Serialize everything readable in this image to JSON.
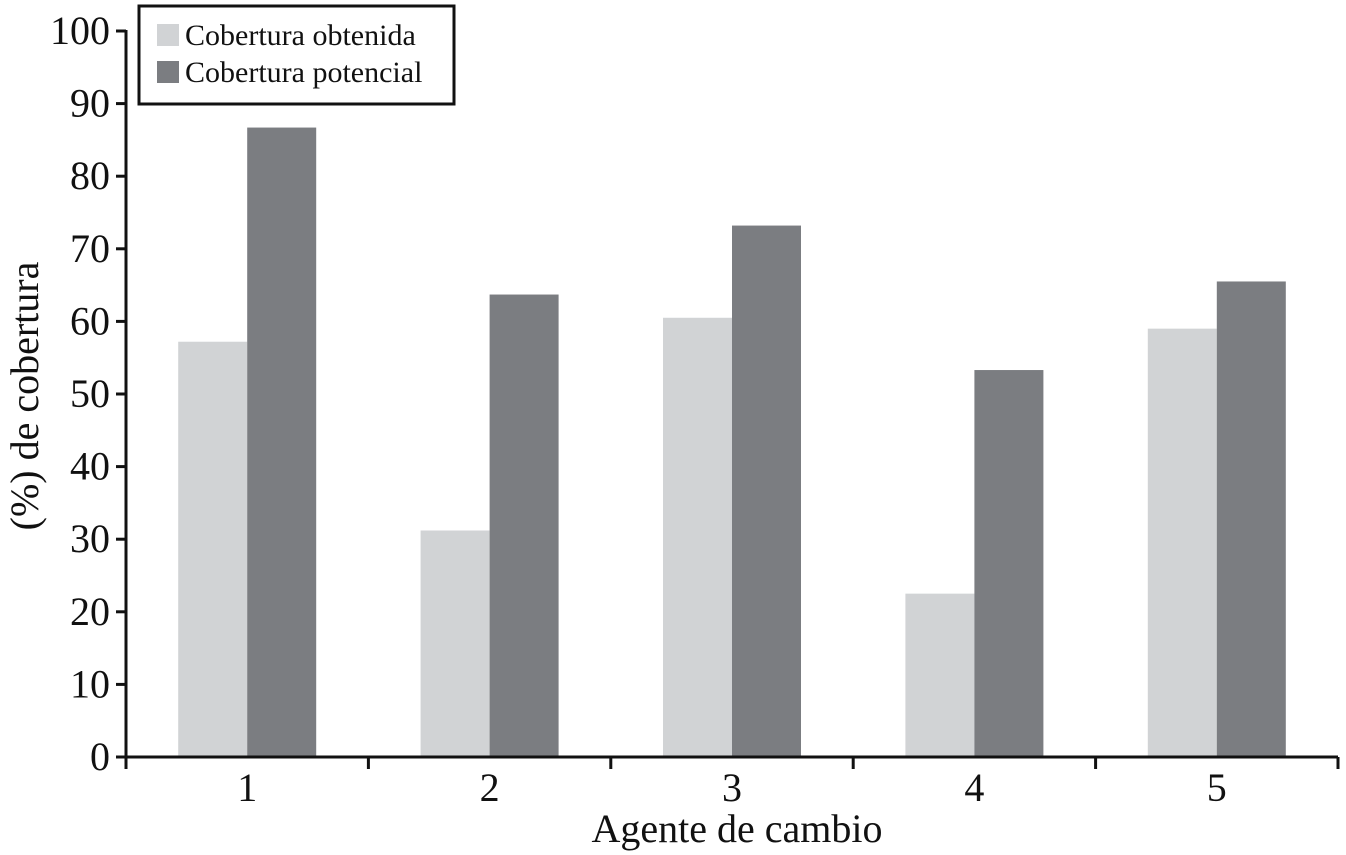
{
  "colors": {
    "obtenida": "#d1d3d5",
    "potencial": "#7b7d81",
    "axis": "#111111",
    "legend_border": "#111111"
  },
  "chart_data": {
    "type": "bar",
    "title": "",
    "xlabel": "Agente de cambio",
    "ylabel": "(%) de cobertura",
    "categories": [
      "1",
      "2",
      "3",
      "4",
      "5"
    ],
    "ylim": [
      0,
      100
    ],
    "yticks": [
      "0",
      "10",
      "20",
      "30",
      "40",
      "50",
      "60",
      "70",
      "80",
      "90",
      "100"
    ],
    "grid": false,
    "legend_position": "top-left",
    "series": [
      {
        "name": "Cobertura obtenida",
        "values": [
          57.2,
          31.2,
          60.5,
          22.5,
          59.0
        ]
      },
      {
        "name": "Cobertura potencial",
        "values": [
          86.7,
          63.7,
          73.2,
          53.3,
          65.5
        ]
      }
    ]
  }
}
